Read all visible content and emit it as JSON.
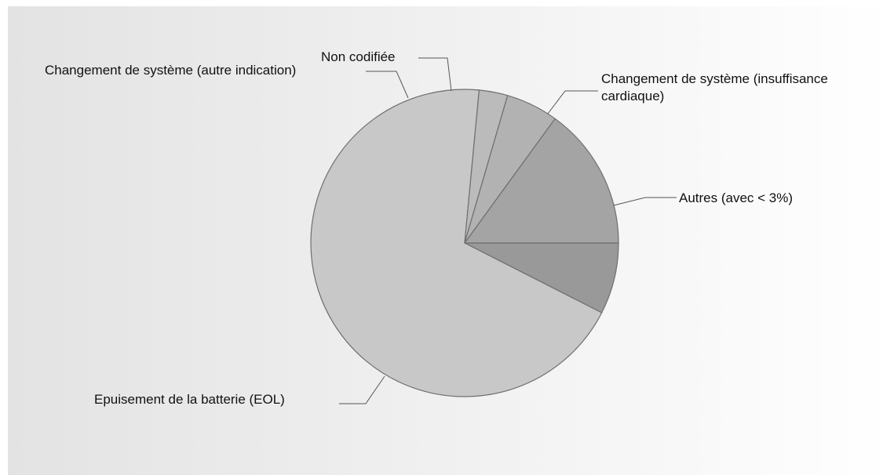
{
  "chart_data": {
    "type": "pie",
    "title": "",
    "slices": [
      {
        "label": "Autres (avec < 3%)",
        "value": 7.5,
        "color": "#999999"
      },
      {
        "label": "Epuisement de la batterie (EOL)",
        "value": 69.0,
        "color": "#c8c8c8"
      },
      {
        "label": "Changement de système (autre indication)",
        "value": 3.0,
        "color": "#bbbbbb"
      },
      {
        "label": "Non codifiée",
        "value": 5.5,
        "color": "#b2b2b2"
      },
      {
        "label": "Changement de système (insuffisance cardiaque)",
        "value": 15.0,
        "color": "#a4a4a4"
      }
    ],
    "start_angle_deg": 0,
    "direction": "clockwise",
    "legend": "none",
    "data_labels": "outside-with-leader-lines"
  }
}
